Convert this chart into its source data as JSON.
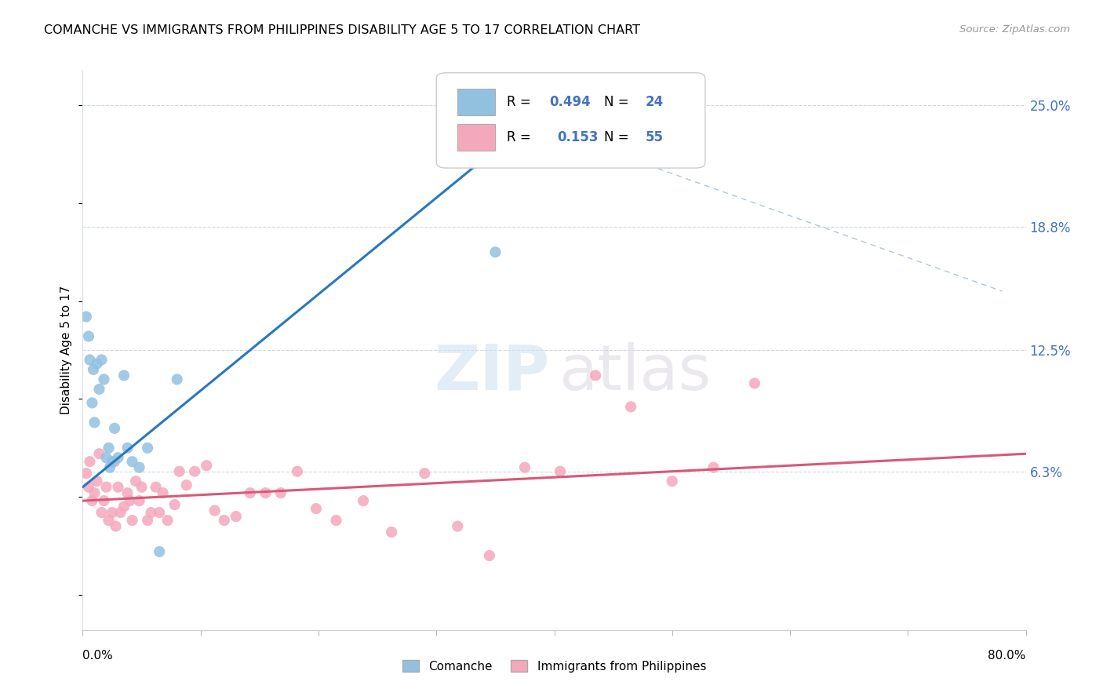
{
  "title": "COMANCHE VS IMMIGRANTS FROM PHILIPPINES DISABILITY AGE 5 TO 17 CORRELATION CHART",
  "source": "Source: ZipAtlas.com",
  "ylabel": "Disability Age 5 to 17",
  "y_ticks": [
    "6.3%",
    "12.5%",
    "18.8%",
    "25.0%"
  ],
  "y_tick_values": [
    0.063,
    0.125,
    0.188,
    0.25
  ],
  "x_min": 0.0,
  "x_max": 0.8,
  "y_min": -0.018,
  "y_max": 0.268,
  "legend_label1": "Comanche",
  "legend_label2": "Immigrants from Philippines",
  "r1": "0.494",
  "n1": "24",
  "r2": "0.153",
  "n2": "55",
  "color_blue": "#92c1e0",
  "color_pink": "#f4a8bc",
  "line_color_blue": "#2878bf",
  "line_color_pink": "#d95878",
  "blue_line_x": [
    0.0,
    0.4
  ],
  "blue_line_y": [
    0.055,
    0.252
  ],
  "pink_line_x": [
    0.0,
    0.8
  ],
  "pink_line_y": [
    0.048,
    0.072
  ],
  "dash_line_x": [
    0.3,
    0.78
  ],
  "dash_line_y": [
    0.258,
    0.155
  ],
  "comanche_x": [
    0.003,
    0.005,
    0.006,
    0.008,
    0.009,
    0.01,
    0.012,
    0.014,
    0.016,
    0.018,
    0.02,
    0.022,
    0.023,
    0.025,
    0.027,
    0.03,
    0.035,
    0.038,
    0.042,
    0.048,
    0.055,
    0.065,
    0.08,
    0.35
  ],
  "comanche_y": [
    0.142,
    0.132,
    0.12,
    0.098,
    0.115,
    0.088,
    0.118,
    0.105,
    0.12,
    0.11,
    0.07,
    0.075,
    0.065,
    0.068,
    0.085,
    0.07,
    0.112,
    0.075,
    0.068,
    0.065,
    0.075,
    0.022,
    0.11,
    0.175
  ],
  "philippines_x": [
    0.003,
    0.005,
    0.006,
    0.008,
    0.01,
    0.012,
    0.014,
    0.016,
    0.018,
    0.02,
    0.022,
    0.025,
    0.027,
    0.028,
    0.03,
    0.032,
    0.035,
    0.038,
    0.04,
    0.042,
    0.045,
    0.048,
    0.05,
    0.055,
    0.058,
    0.062,
    0.065,
    0.068,
    0.072,
    0.078,
    0.082,
    0.088,
    0.095,
    0.105,
    0.112,
    0.12,
    0.13,
    0.142,
    0.155,
    0.168,
    0.182,
    0.198,
    0.215,
    0.238,
    0.262,
    0.29,
    0.318,
    0.345,
    0.375,
    0.405,
    0.435,
    0.465,
    0.5,
    0.535,
    0.57
  ],
  "philippines_y": [
    0.062,
    0.055,
    0.068,
    0.048,
    0.052,
    0.058,
    0.072,
    0.042,
    0.048,
    0.055,
    0.038,
    0.042,
    0.068,
    0.035,
    0.055,
    0.042,
    0.045,
    0.052,
    0.048,
    0.038,
    0.058,
    0.048,
    0.055,
    0.038,
    0.042,
    0.055,
    0.042,
    0.052,
    0.038,
    0.046,
    0.063,
    0.056,
    0.063,
    0.066,
    0.043,
    0.038,
    0.04,
    0.052,
    0.052,
    0.052,
    0.063,
    0.044,
    0.038,
    0.048,
    0.032,
    0.062,
    0.035,
    0.02,
    0.065,
    0.063,
    0.112,
    0.096,
    0.058,
    0.065,
    0.108
  ]
}
